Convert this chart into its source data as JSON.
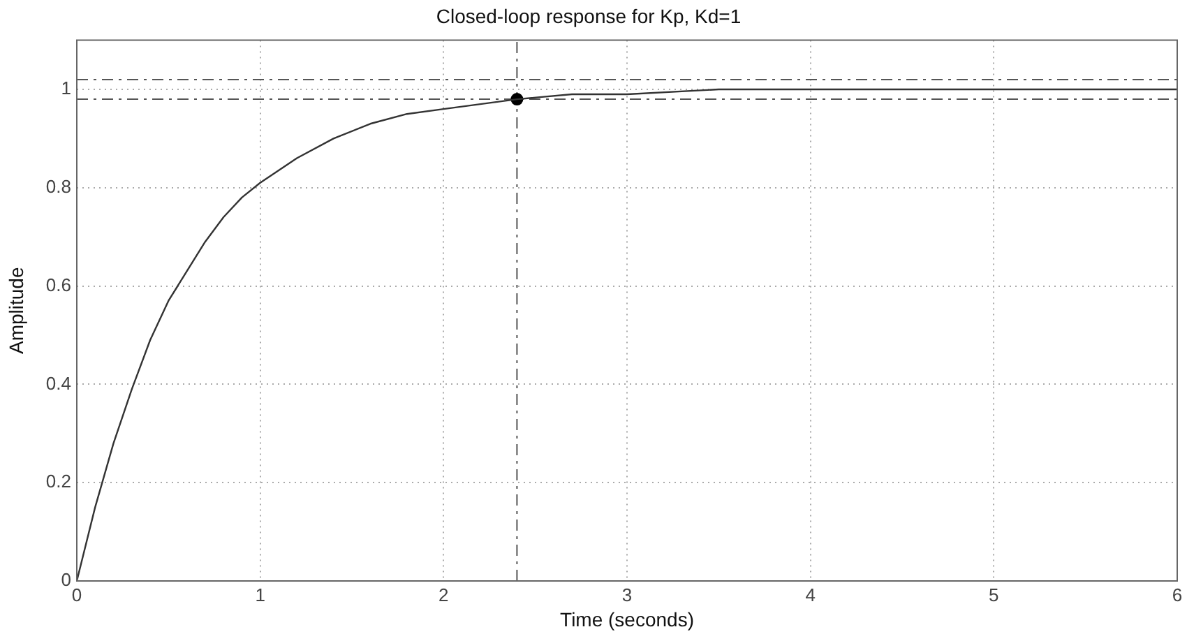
{
  "chart_data": {
    "type": "line",
    "title": "Closed-loop response for Kp, Kd=1",
    "xlabel": "Time (seconds)",
    "ylabel": "Amplitude",
    "x": [
      0,
      0.1,
      0.2,
      0.3,
      0.4,
      0.5,
      0.6,
      0.7,
      0.8,
      0.9,
      1,
      1.2,
      1.4,
      1.6,
      1.8,
      2,
      2.2,
      2.4,
      2.7,
      3,
      3.5,
      4,
      5,
      6
    ],
    "series": [
      {
        "color": "#333333",
        "marker": "none",
        "values": [
          0,
          0.15,
          0.28,
          0.39,
          0.49,
          0.57,
          0.63,
          0.69,
          0.74,
          0.78,
          0.81,
          0.86,
          0.9,
          0.93,
          0.95,
          0.96,
          0.97,
          0.98,
          0.99,
          0.99,
          1,
          1,
          1,
          1
        ]
      },
      {
        "type": "scatter",
        "marker": "circle",
        "color": "#000000",
        "x": [
          2.4
        ],
        "values": [
          0.98
        ]
      }
    ],
    "xlim": [
      0,
      6
    ],
    "xticks": [
      0,
      1,
      2,
      3,
      4,
      5,
      6
    ],
    "ylim": [
      0,
      1.1
    ],
    "yticks": [
      0,
      0.2,
      0.4,
      0.6,
      0.8,
      1
    ],
    "ref_lines": [
      {
        "axis": "y",
        "value": 1.02,
        "color": "#555555",
        "line_style": "dashed"
      },
      {
        "axis": "y",
        "value": 0.98,
        "color": "#555555",
        "line_style": "dashed"
      },
      {
        "axis": "x",
        "value": 2.4,
        "color": "#555555",
        "line_style": "dashed"
      }
    ],
    "grid": true,
    "legend": false,
    "line_style": "solid"
  }
}
